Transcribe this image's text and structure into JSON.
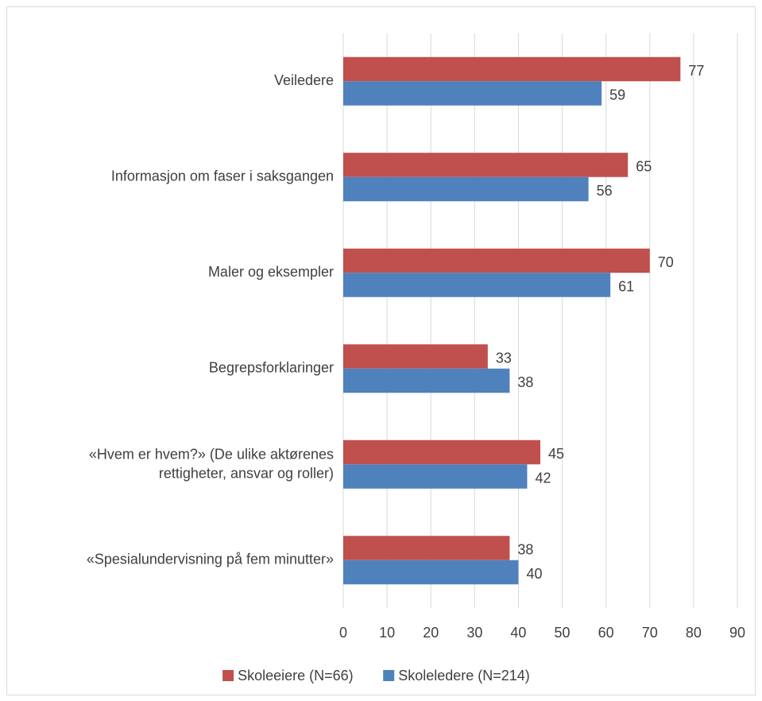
{
  "chart_data": {
    "type": "barh",
    "categories": [
      "Veiledere",
      "Informasjon om faser i saksgangen",
      "Maler og eksempler",
      "Begrepsforklaringer",
      "«Hvem er hvem?» (De ulike aktørenes\nrettigheter, ansvar og roller)",
      "«Spesialundervisning på fem minutter»"
    ],
    "series": [
      {
        "name": "Skoleeiere (N=66)",
        "color": "#c0504d",
        "values": [
          77,
          65,
          70,
          33,
          45,
          38
        ]
      },
      {
        "name": "Skoleledere (N=214)",
        "color": "#4f81bd",
        "values": [
          59,
          56,
          61,
          38,
          42,
          40
        ]
      }
    ],
    "xlim": [
      0,
      90
    ],
    "xticks": [
      0,
      10,
      20,
      30,
      40,
      50,
      60,
      70,
      80,
      90
    ],
    "grid": true,
    "legend": "bottom"
  }
}
